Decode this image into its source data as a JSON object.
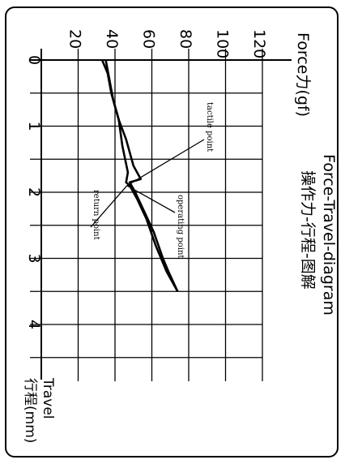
{
  "chart_data": {
    "type": "line",
    "title": "Force-Travel-diagram",
    "subtitle": "操作力-行程-图解",
    "force_axis": {
      "label": "Force力(gf)",
      "range": [
        0,
        120
      ],
      "ticks": [
        20,
        40,
        60,
        80,
        100,
        120
      ]
    },
    "travel_axis": {
      "label": "Travel",
      "label_cn": "行程(mm)",
      "range": [
        0,
        5
      ],
      "ticks": [
        0,
        1,
        2,
        3,
        4
      ]
    },
    "grid": true,
    "series": [
      {
        "travel": [
          0.0,
          0.2,
          0.5,
          0.9,
          1.3,
          1.7,
          1.85,
          1.9,
          2.1,
          2.4,
          2.8,
          3.2,
          3.5
        ],
        "force": [
          33,
          36,
          38,
          42,
          44,
          47,
          46,
          48,
          52,
          57,
          62,
          68,
          74
        ]
      },
      {
        "travel": [
          0.0,
          0.3,
          0.6,
          0.9,
          1.2,
          1.6,
          1.8,
          1.85,
          2.0,
          2.3,
          2.6,
          3.0,
          3.2,
          3.5
        ],
        "force": [
          35,
          37,
          39,
          42,
          46,
          50,
          54,
          48,
          51,
          56,
          61,
          66,
          69,
          74
        ]
      }
    ],
    "annotations": [
      {
        "text": "tactile point",
        "travel": 1.8,
        "force": 54
      },
      {
        "text": "operating point",
        "travel": 2.0,
        "force": 51
      },
      {
        "text": "return point",
        "travel": 1.9,
        "force": 47
      }
    ]
  }
}
